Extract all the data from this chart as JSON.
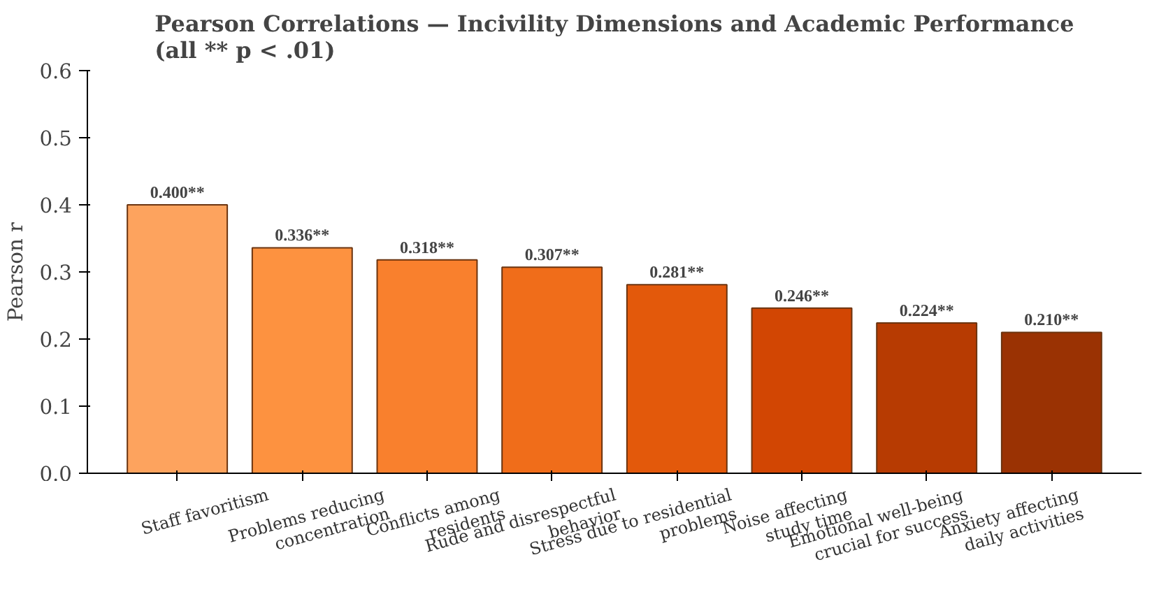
{
  "chart_data": {
    "type": "bar",
    "title": "Pearson Correlations — Incivility Dimensions and Academic Performance\n(all ** p < .01)",
    "ylabel": "Pearson r",
    "categories": [
      "Staff favoritism",
      "Problems reducing\nconcentration",
      "Conflicts among\nresidents",
      "Rude and disrespectful\nbehavior",
      "Stress due to residential\nproblems",
      "Noise affecting\nstudy time",
      "Emotional well-being\ncrucial for success",
      "Anxiety affecting\ndaily activities"
    ],
    "values": [
      0.4,
      0.336,
      0.318,
      0.307,
      0.281,
      0.246,
      0.224,
      0.21
    ],
    "colors": [
      "#fda35e",
      "#fd9240",
      "#f9802d",
      "#f06d1a",
      "#e3590b",
      "#d24603",
      "#b73b02",
      "#9a3203"
    ],
    "value_labels": [
      "0.400**",
      "0.336**",
      "0.318**",
      "0.307**",
      "0.281**",
      "0.246**",
      "0.224**",
      "0.210**"
    ],
    "ylim": [
      0,
      0.6
    ],
    "yticks": [
      {
        "value": 0,
        "label": "0.0"
      },
      {
        "value": 0.1,
        "label": "0.1"
      },
      {
        "value": 0.2,
        "label": "0.2"
      },
      {
        "value": 0.3,
        "label": "0.3"
      },
      {
        "value": 0.4,
        "label": "0.4"
      },
      {
        "value": 0.5,
        "label": "0.5"
      },
      {
        "value": 0.6,
        "label": "0.6"
      }
    ],
    "grid": false
  }
}
